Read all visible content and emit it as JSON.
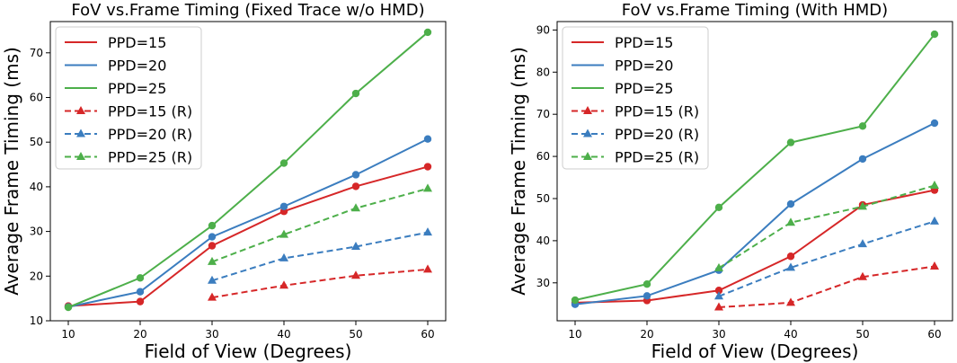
{
  "chart_data": [
    {
      "type": "line",
      "title": "FoV vs.Frame Timing (Fixed Trace w/o HMD)",
      "xlabel": "Field of View (Degrees)",
      "ylabel": "Average Frame Timing (ms)",
      "xlim": [
        7.5,
        62.5
      ],
      "ylim": [
        10,
        77
      ],
      "xticks": [
        10,
        20,
        30,
        40,
        50,
        60
      ],
      "yticks": [
        10,
        20,
        30,
        40,
        50,
        60,
        70
      ],
      "legend_position": "top-left",
      "series": [
        {
          "name": "PPD=15",
          "color": "#d62728",
          "dashed": false,
          "marker": "circle",
          "x": [
            10,
            20,
            30,
            40,
            50,
            60
          ],
          "values": [
            13.3,
            14.3,
            26.8,
            34.5,
            40.1,
            44.5
          ]
        },
        {
          "name": "PPD=20",
          "color": "#3b7dbf",
          "dashed": false,
          "marker": "circle",
          "x": [
            10,
            20,
            30,
            40,
            50,
            60
          ],
          "values": [
            13.1,
            16.5,
            28.8,
            35.6,
            42.7,
            50.7
          ]
        },
        {
          "name": "PPD=25",
          "color": "#4daf4a",
          "dashed": false,
          "marker": "circle",
          "x": [
            10,
            20,
            30,
            40,
            50,
            60
          ],
          "values": [
            13.0,
            19.6,
            31.3,
            45.3,
            60.9,
            74.6
          ]
        },
        {
          "name": "PPD=15 (R)",
          "color": "#d62728",
          "dashed": true,
          "marker": "triangle",
          "x": [
            30,
            40,
            50,
            60
          ],
          "values": [
            15.2,
            17.9,
            20.1,
            21.5
          ]
        },
        {
          "name": "PPD=20 (R)",
          "color": "#3b7dbf",
          "dashed": true,
          "marker": "triangle",
          "x": [
            30,
            40,
            50,
            60
          ],
          "values": [
            19.0,
            24.0,
            26.6,
            29.8
          ]
        },
        {
          "name": "PPD=25 (R)",
          "color": "#4daf4a",
          "dashed": true,
          "marker": "triangle",
          "x": [
            30,
            40,
            50,
            60
          ],
          "values": [
            23.2,
            29.3,
            35.2,
            39.6
          ]
        }
      ]
    },
    {
      "type": "line",
      "title": "FoV vs.Frame Timing (With HMD)",
      "xlabel": "Field of View (Degrees)",
      "ylabel": "Average Frame Timing (ms)",
      "xlim": [
        7.5,
        62.5
      ],
      "ylim": [
        21,
        92
      ],
      "xticks": [
        10,
        20,
        30,
        40,
        50,
        60
      ],
      "yticks": [
        30,
        40,
        50,
        60,
        70,
        80,
        90
      ],
      "legend_position": "top-left",
      "series": [
        {
          "name": "PPD=15",
          "color": "#d62728",
          "dashed": false,
          "marker": "circle",
          "x": [
            10,
            20,
            30,
            40,
            50,
            60
          ],
          "values": [
            25.3,
            25.8,
            28.2,
            36.3,
            48.5,
            52.0
          ]
        },
        {
          "name": "PPD=20",
          "color": "#3b7dbf",
          "dashed": false,
          "marker": "circle",
          "x": [
            10,
            20,
            30,
            40,
            50,
            60
          ],
          "values": [
            24.9,
            26.9,
            33.0,
            48.7,
            59.4,
            67.9
          ]
        },
        {
          "name": "PPD=25",
          "color": "#4daf4a",
          "dashed": false,
          "marker": "circle",
          "x": [
            10,
            20,
            30,
            40,
            50,
            60
          ],
          "values": [
            25.9,
            29.7,
            47.9,
            63.3,
            67.2,
            89.0
          ]
        },
        {
          "name": "PPD=15 (R)",
          "color": "#d62728",
          "dashed": true,
          "marker": "triangle",
          "x": [
            30,
            40,
            50,
            60
          ],
          "values": [
            24.2,
            25.3,
            31.4,
            33.9
          ]
        },
        {
          "name": "PPD=20 (R)",
          "color": "#3b7dbf",
          "dashed": true,
          "marker": "triangle",
          "x": [
            30,
            40,
            50,
            60
          ],
          "values": [
            26.8,
            33.6,
            39.2,
            44.6
          ]
        },
        {
          "name": "PPD=25 (R)",
          "color": "#4daf4a",
          "dashed": true,
          "marker": "triangle",
          "x": [
            30,
            40,
            50,
            60
          ],
          "values": [
            33.5,
            44.3,
            48.1,
            53.1
          ]
        }
      ]
    }
  ]
}
